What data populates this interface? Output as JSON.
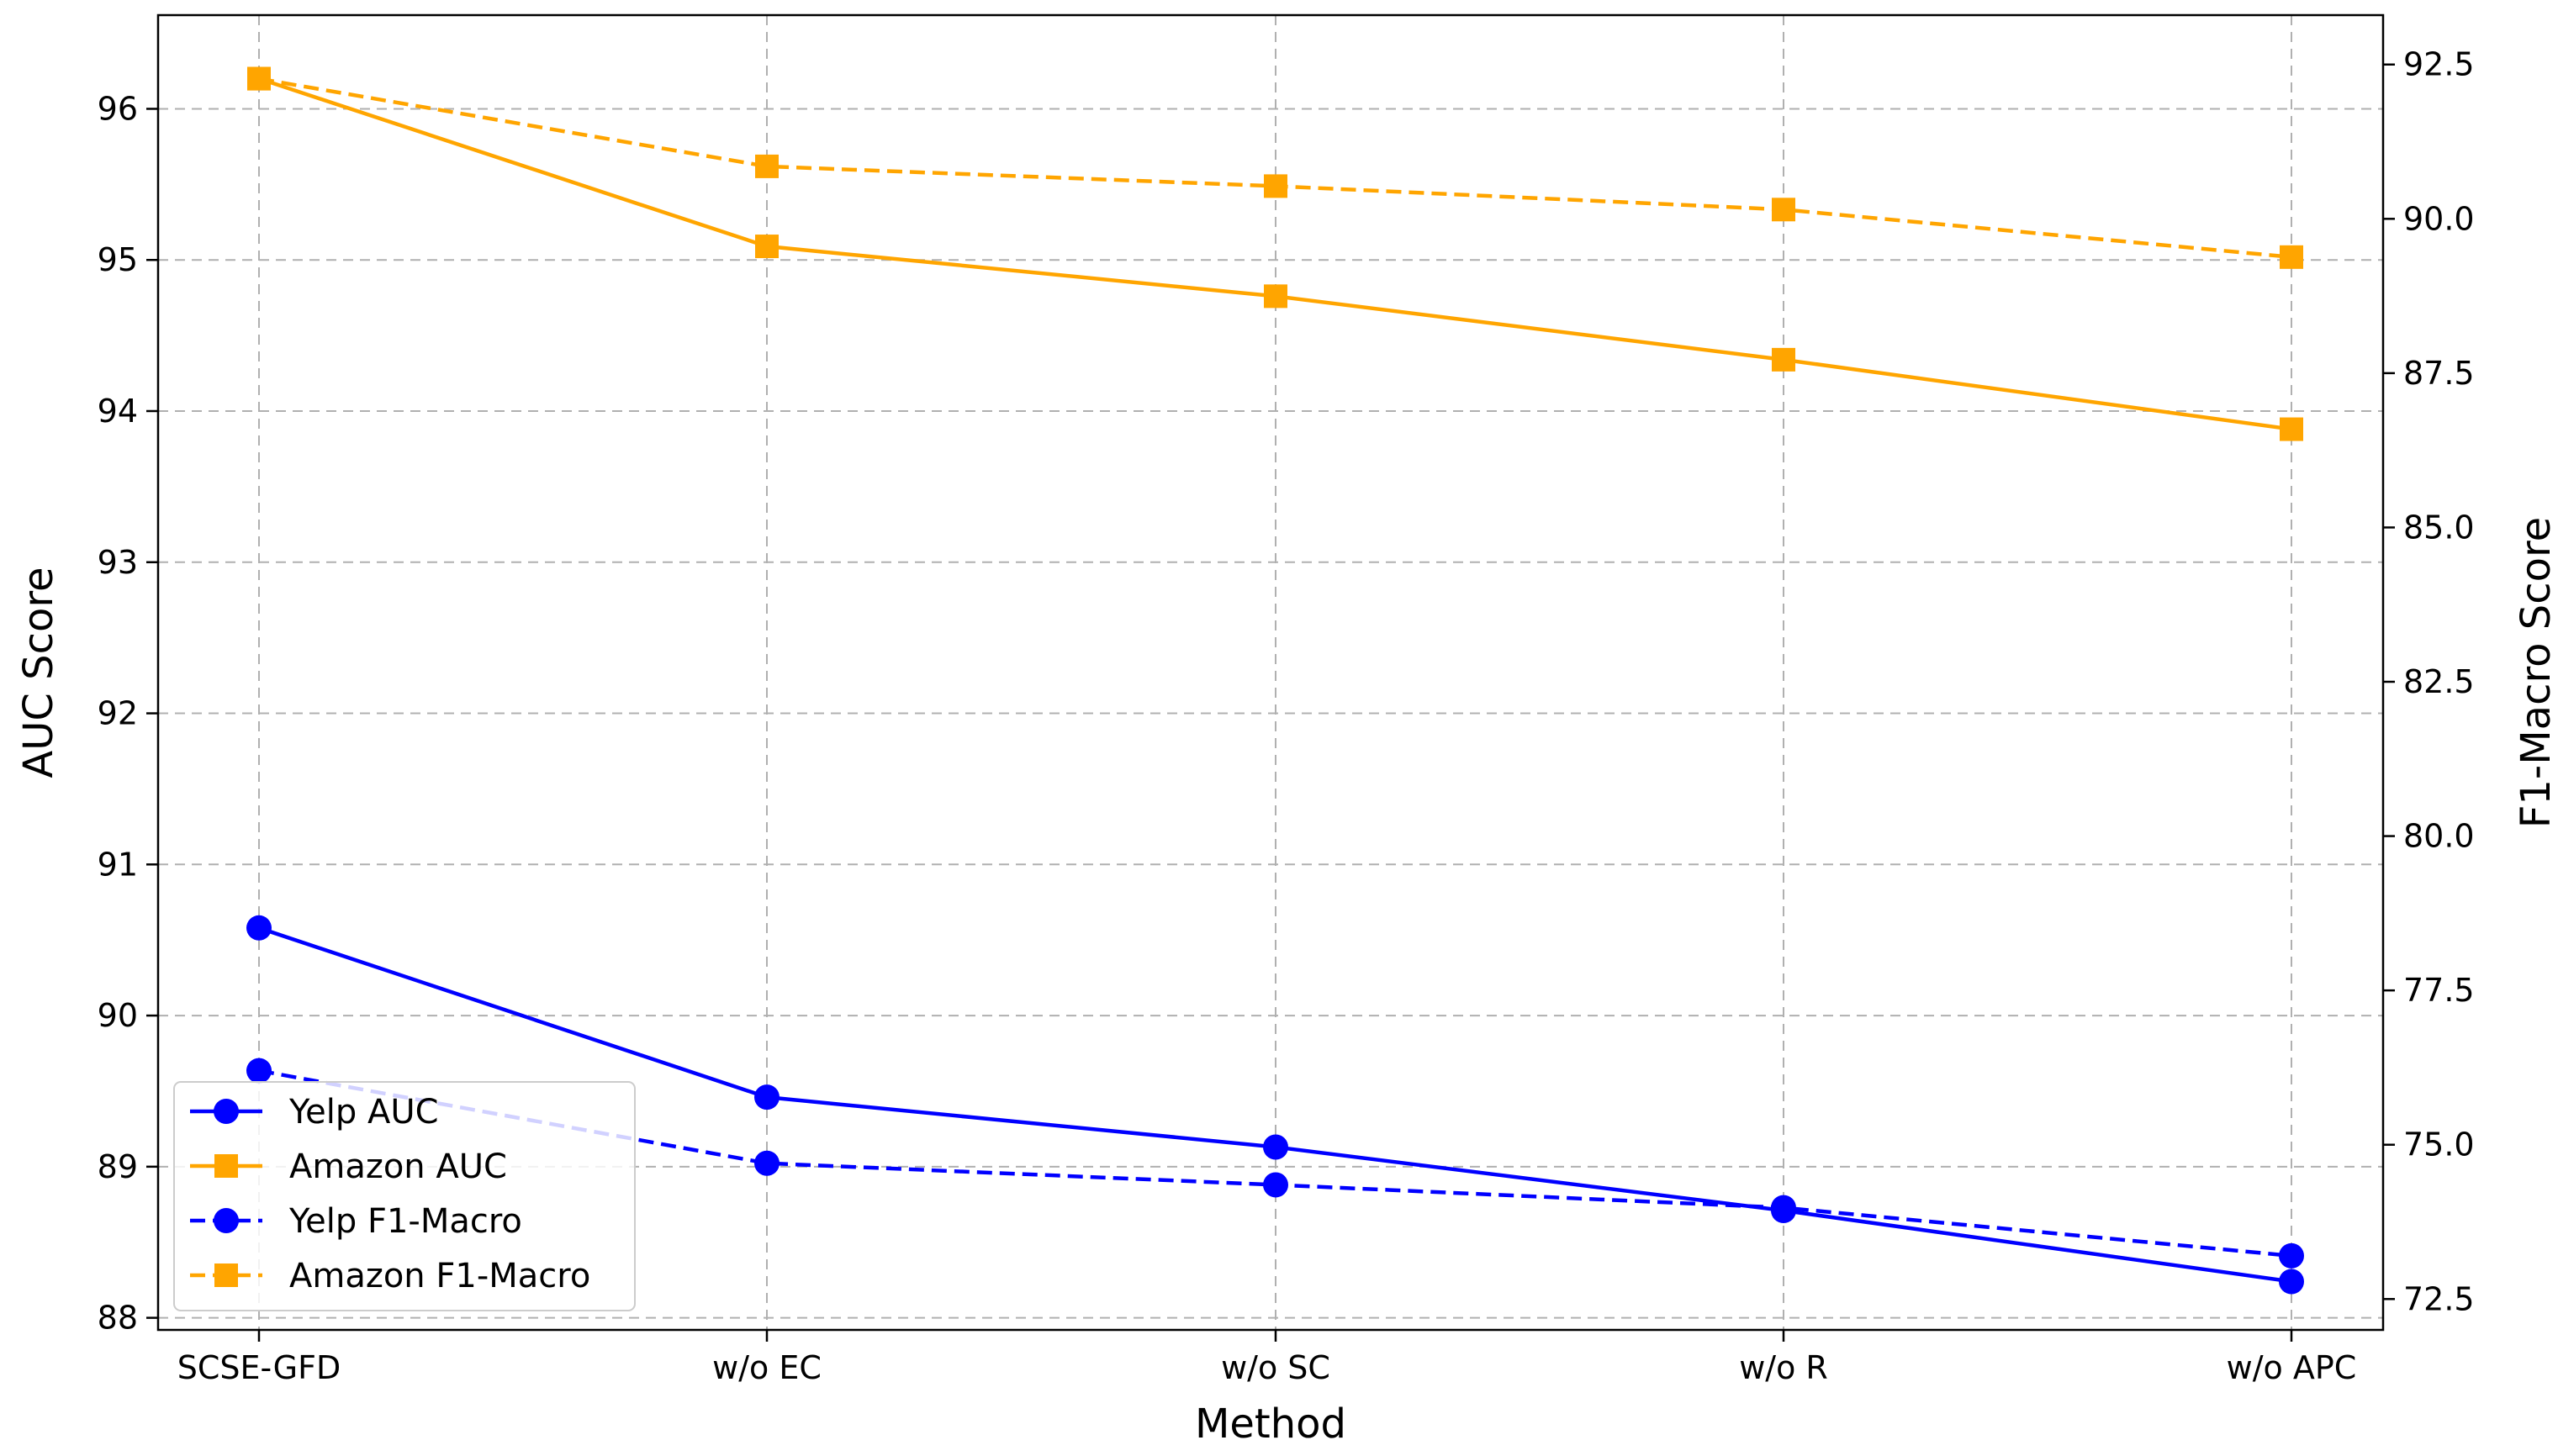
{
  "chart_data": {
    "type": "line",
    "xlabel": "Method",
    "ylabel_left": "AUC Score",
    "ylabel_right": "F1-Macro Score",
    "categories": [
      "SCSE-GFD",
      "w/o EC",
      "w/o SC",
      "w/o R",
      "w/o APC"
    ],
    "left_axis": {
      "range": [
        87.92,
        96.62
      ],
      "ticks": [
        88,
        89,
        90,
        91,
        92,
        93,
        94,
        95,
        96
      ]
    },
    "right_axis": {
      "range": [
        72.0,
        93.3
      ],
      "ticks": [
        "72.5",
        "75.0",
        "77.5",
        "80.0",
        "82.5",
        "85.0",
        "87.5",
        "90.0",
        "92.5"
      ]
    },
    "grid": true,
    "legend_position": "lower-left",
    "series": [
      {
        "name": "Yelp AUC",
        "axis": "left",
        "color": "#0000ff",
        "style": "solid",
        "marker": "circle",
        "values": [
          90.58,
          89.46,
          89.13,
          88.71,
          88.24
        ]
      },
      {
        "name": "Amazon AUC",
        "axis": "left",
        "color": "#ffa500",
        "style": "solid",
        "marker": "square",
        "values": [
          96.2,
          95.09,
          94.76,
          94.34,
          93.88
        ]
      },
      {
        "name": "Yelp F1-Macro",
        "axis": "right",
        "color": "#0000ff",
        "style": "dashed",
        "marker": "circle",
        "values": [
          76.2,
          74.7,
          74.35,
          73.98,
          73.2
        ]
      },
      {
        "name": "Amazon F1-Macro",
        "axis": "right",
        "color": "#ffa500",
        "style": "dashed",
        "marker": "square",
        "values": [
          92.27,
          90.85,
          90.53,
          90.15,
          89.38
        ]
      }
    ]
  }
}
